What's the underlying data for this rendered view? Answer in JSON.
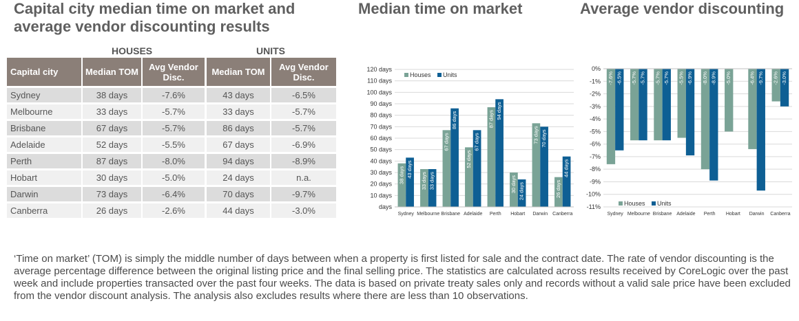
{
  "titles": {
    "main": "Capital city median time on market and average vendor discounting results",
    "tom_chart": "Median time on market",
    "disc_chart": "Average vendor discounting"
  },
  "table": {
    "group_houses": "HOUSES",
    "group_units": "UNITS",
    "headers": {
      "city": "Capital city",
      "houses_tom": "Median TOM",
      "houses_disc": "Avg Vendor Disc.",
      "units_tom": "Median TOM",
      "units_disc": "Avg Vendor Disc."
    },
    "rows": [
      {
        "city": "Sydney",
        "houses_tom": "38 days",
        "houses_disc": "-7.6%",
        "units_tom": "43 days",
        "units_disc": "-6.5%"
      },
      {
        "city": "Melbourne",
        "houses_tom": "33 days",
        "houses_disc": "-5.7%",
        "units_tom": "33 days",
        "units_disc": "-5.7%"
      },
      {
        "city": "Brisbane",
        "houses_tom": "67 days",
        "houses_disc": "-5.7%",
        "units_tom": "86 days",
        "units_disc": "-5.7%"
      },
      {
        "city": "Adelaide",
        "houses_tom": "52 days",
        "houses_disc": "-5.5%",
        "units_tom": "67 days",
        "units_disc": "-6.9%"
      },
      {
        "city": "Perth",
        "houses_tom": "87 days",
        "houses_disc": "-8.0%",
        "units_tom": "94 days",
        "units_disc": "-8.9%"
      },
      {
        "city": "Hobart",
        "houses_tom": "30 days",
        "houses_disc": "-5.0%",
        "units_tom": "24 days",
        "units_disc": "n.a."
      },
      {
        "city": "Darwin",
        "houses_tom": "73 days",
        "houses_disc": "-6.4%",
        "units_tom": "70 days",
        "units_disc": "-9.7%"
      },
      {
        "city": "Canberra",
        "houses_tom": "26 days",
        "houses_disc": "-2.6%",
        "units_tom": "44 days",
        "units_disc": "-3.0%"
      }
    ]
  },
  "chart_data": [
    {
      "type": "bar",
      "title": "Median time on market",
      "categories": [
        "Sydney",
        "Melbourne",
        "Brisbane",
        "Adelaide",
        "Perth",
        "Hobart",
        "Darwin",
        "Canberra"
      ],
      "series": [
        {
          "name": "Houses",
          "color": "#7aa396",
          "values": [
            38,
            33,
            67,
            52,
            87,
            30,
            73,
            26
          ],
          "labels": [
            "38 days",
            "33 days",
            "67 days",
            "52 days",
            "87 days",
            "30 days",
            "73 days",
            "26 days"
          ]
        },
        {
          "name": "Units",
          "color": "#0e5f94",
          "values": [
            43,
            33,
            86,
            67,
            94,
            24,
            70,
            44
          ],
          "labels": [
            "43 days",
            "33 days",
            "86 days",
            "67 days",
            "94 days",
            "24 days",
            "70 days",
            "44 days"
          ]
        }
      ],
      "ylim": [
        0,
        120
      ],
      "yticks": [
        "days",
        "10 days",
        "20 days",
        "30 days",
        "40 days",
        "50 days",
        "60 days",
        "70 days",
        "80 days",
        "90 days",
        "100 days",
        "110 days",
        "120 days"
      ],
      "grid": true,
      "legend": "top-left"
    },
    {
      "type": "bar",
      "title": "Average vendor discounting",
      "categories": [
        "Sydney",
        "Melbourne",
        "Brisbane",
        "Adelaide",
        "Perth",
        "Hobart",
        "Darwin",
        "Canberra"
      ],
      "series": [
        {
          "name": "Houses",
          "color": "#7aa396",
          "values": [
            -7.6,
            -5.7,
            -5.7,
            -5.5,
            -8.0,
            -5.0,
            -6.4,
            -2.6
          ],
          "labels": [
            "-7.6%",
            "-5.7%",
            "-5.7%",
            "-5.5%",
            "-8.0%",
            "-5.0%",
            "-6.4%",
            "-2.6%"
          ]
        },
        {
          "name": "Units",
          "color": "#0e5f94",
          "values": [
            -6.5,
            -5.7,
            -5.7,
            -6.9,
            -8.9,
            null,
            -9.7,
            -3.0
          ],
          "labels": [
            "-6.5%",
            "-5.7%",
            "-5.7%",
            "-6.9%",
            "-8.9%",
            "",
            "-9.7%",
            "-3.0%"
          ]
        }
      ],
      "ylim": [
        -11,
        0
      ],
      "yticks": [
        "0%",
        "-1%",
        "-2%",
        "-3%",
        "-4%",
        "-5%",
        "-6%",
        "-7%",
        "-8%",
        "-9%",
        "-10%",
        "-11%"
      ],
      "grid": true,
      "legend": "bottom-left"
    }
  ],
  "footnote": "‘Time on market’ (TOM) is simply the middle number of days between when a property is first listed for sale and the contract date.  The rate of vendor discounting is the average percentage difference between the original listing price and the final selling price.  The statistics are calculated across results received by CoreLogic over the past week and include properties transacted over the past four weeks. The data is based on private treaty sales only and records without a valid sale price have been excluded from the vendor discount analysis. The analysis also excludes results where there are less than 10 observations."
}
